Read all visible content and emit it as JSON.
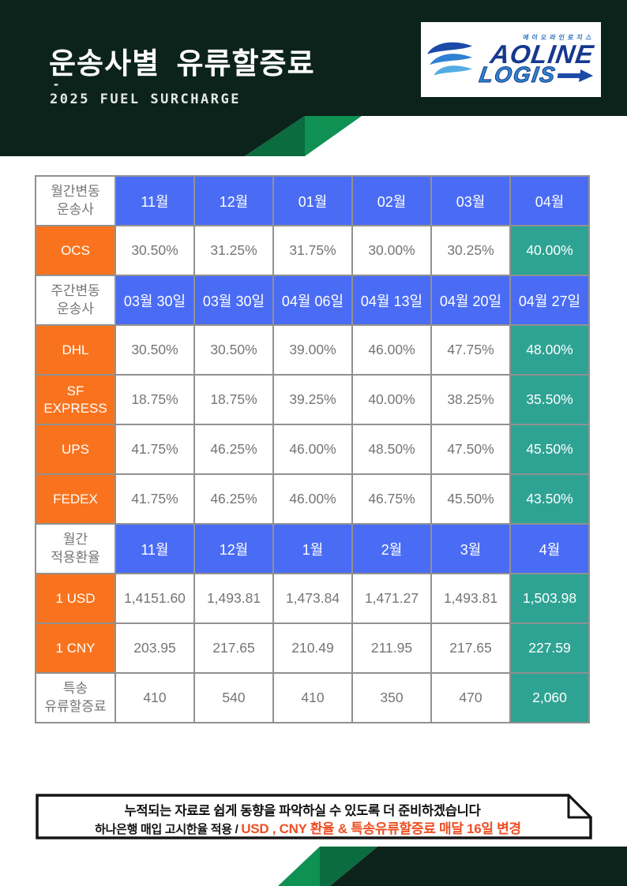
{
  "header": {
    "title": "운송사별 유류할증료",
    "dash": "-",
    "subtitle": "2025 FUEL SURCHARGE"
  },
  "logo": {
    "korean_name": "에이오라인로지스",
    "word1": "AOLINE",
    "word2": "LOGIS"
  },
  "colors": {
    "dark_green": "#0c231b",
    "mid_green": "#0a6c3f",
    "bright_green": "#0f9153",
    "blue": "#4a6cf5",
    "orange": "#f9731e",
    "teal": "#2ea394",
    "note_orange": "#f04e23"
  },
  "table": {
    "rows": [
      {
        "label": "월간변동\n운송사",
        "label_style": "plain",
        "cell_style": "month",
        "cells": [
          "11월",
          "12월",
          "01월",
          "02월",
          "03월",
          "04월"
        ]
      },
      {
        "label": "OCS",
        "label_style": "carrier",
        "cell_style": "data",
        "cells": [
          "30.50%",
          "31.25%",
          "31.75%",
          "30.00%",
          "30.25%",
          "40.00%"
        ]
      },
      {
        "label": "주간변동\n운송사",
        "label_style": "plain",
        "cell_style": "month",
        "cells": [
          "03월 30일",
          "03월 30일",
          "04월 06일",
          "04월 13일",
          "04월 20일",
          "04월 27일"
        ]
      },
      {
        "label": "DHL",
        "label_style": "carrier",
        "cell_style": "data",
        "cells": [
          "30.50%",
          "30.50%",
          "39.00%",
          "46.00%",
          "47.75%",
          "48.00%"
        ]
      },
      {
        "label": "SF\nEXPRESS",
        "label_style": "carrier",
        "cell_style": "data",
        "cells": [
          "18.75%",
          "18.75%",
          "39.25%",
          "40.00%",
          "38.25%",
          "35.50%"
        ]
      },
      {
        "label": "UPS",
        "label_style": "carrier",
        "cell_style": "data",
        "cells": [
          "41.75%",
          "46.25%",
          "46.00%",
          "48.50%",
          "47.50%",
          "45.50%"
        ]
      },
      {
        "label": "FEDEX",
        "label_style": "carrier",
        "cell_style": "data",
        "cells": [
          "41.75%",
          "46.25%",
          "46.00%",
          "46.75%",
          "45.50%",
          "43.50%"
        ]
      },
      {
        "label": "월간\n적용환율",
        "label_style": "plain",
        "cell_style": "month",
        "cells": [
          "11월",
          "12월",
          "1월",
          "2월",
          "3월",
          "4월"
        ]
      },
      {
        "label": "1 USD",
        "label_style": "carrier",
        "cell_style": "data",
        "cells": [
          "1,4151.60",
          "1,493.81",
          "1,473.84",
          "1,471.27",
          "1,493.81",
          "1,503.98"
        ]
      },
      {
        "label": "1 CNY",
        "label_style": "carrier",
        "cell_style": "data",
        "cells": [
          "203.95",
          "217.65",
          "210.49",
          "211.95",
          "217.65",
          "227.59"
        ]
      },
      {
        "label": "특송\n유류할증료",
        "label_style": "plain",
        "cell_style": "data",
        "cells": [
          "410",
          "540",
          "410",
          "350",
          "470",
          "2,060"
        ]
      }
    ]
  },
  "footer_note": {
    "line1": "누적되는 자료로 쉽게 동향을 파악하실 수 있도록 더 준비하겠습니다",
    "line2_black": "하나은행  매입 고시한율 적용 /",
    "line2_orange": "USD , CNY 환율  & 특송유류할증료 매달 16일 변경"
  }
}
